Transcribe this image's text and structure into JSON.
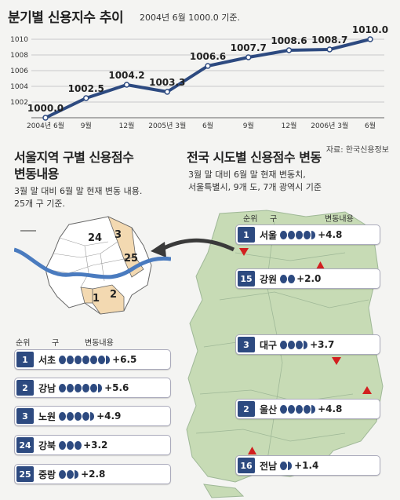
{
  "title": "분기별 신용지수 추이",
  "subtitle": "2004년 6월 1000.0 기준.",
  "source": "자료: 한국신용정보",
  "colors": {
    "line": "#2d4a80",
    "accent": "#2d4a80",
    "highlight": "#f3d9b1",
    "map_green": "#c7dbb5",
    "arrow": "#d21f1f"
  },
  "chart_data": {
    "type": "line",
    "title": "분기별 신용지수 추이",
    "categories": [
      "2004년 6월",
      "9월",
      "12월",
      "2005년 3월",
      "6월",
      "9월",
      "12월",
      "2006년 3월",
      "6월"
    ],
    "values": [
      1000.0,
      1002.5,
      1004.2,
      1003.3,
      1006.6,
      1007.7,
      1008.6,
      1008.7,
      1010.0
    ],
    "value_labels": [
      "1000.0",
      "1002.5",
      "1004.2",
      "1003.3",
      "1006.6",
      "1007.7",
      "1008.6",
      "1008.7",
      "1010.0"
    ],
    "ylim": [
      1000,
      1010
    ],
    "yticks": [
      "1002",
      "1004",
      "1006",
      "1008",
      "1010"
    ],
    "grid": true
  },
  "seoul": {
    "title_line1": "서울지역 구별 신용점수",
    "title_line2": "변동내용",
    "desc_line1": "3월 말 대비 6월 말 현재 변동 내용.",
    "desc_line2": "25개 구 기준.",
    "header": {
      "rank": "순위",
      "name": "구",
      "change": "변동내용"
    },
    "map_labels": [
      "24",
      "3",
      "25",
      "1",
      "2"
    ],
    "rows": [
      {
        "rank": "1",
        "name": "서초",
        "dots": 6,
        "half": true,
        "value": "+6.5"
      },
      {
        "rank": "2",
        "name": "강남",
        "dots": 5,
        "half": true,
        "value": "+5.6"
      },
      {
        "rank": "3",
        "name": "노원",
        "dots": 4,
        "half": true,
        "value": "+4.9"
      },
      {
        "rank": "24",
        "name": "강북",
        "dots": 3,
        "half": false,
        "value": "+3.2"
      },
      {
        "rank": "25",
        "name": "중랑",
        "dots": 2,
        "half": true,
        "value": "+2.8"
      }
    ]
  },
  "national": {
    "title": "전국 시도별 신용점수 변동",
    "desc_line1": "3월 말 대비 6월 말 현재 변동치,",
    "desc_line2": "서울특별시, 9개 도, 7개 광역시 기준",
    "header": {
      "rank": "순위",
      "name": "구",
      "change": "변동내용"
    },
    "rows": [
      {
        "rank": "1",
        "name": "서울",
        "dots": 4,
        "half": true,
        "value": "+4.8"
      },
      {
        "rank": "15",
        "name": "강원",
        "dots": 2,
        "half": false,
        "value": "+2.0"
      },
      {
        "rank": "3",
        "name": "대구",
        "dots": 3,
        "half": true,
        "value": "+3.7"
      },
      {
        "rank": "2",
        "name": "울산",
        "dots": 4,
        "half": true,
        "value": "+4.8"
      },
      {
        "rank": "16",
        "name": "전남",
        "dots": 1,
        "half": true,
        "value": "+1.4"
      }
    ]
  }
}
